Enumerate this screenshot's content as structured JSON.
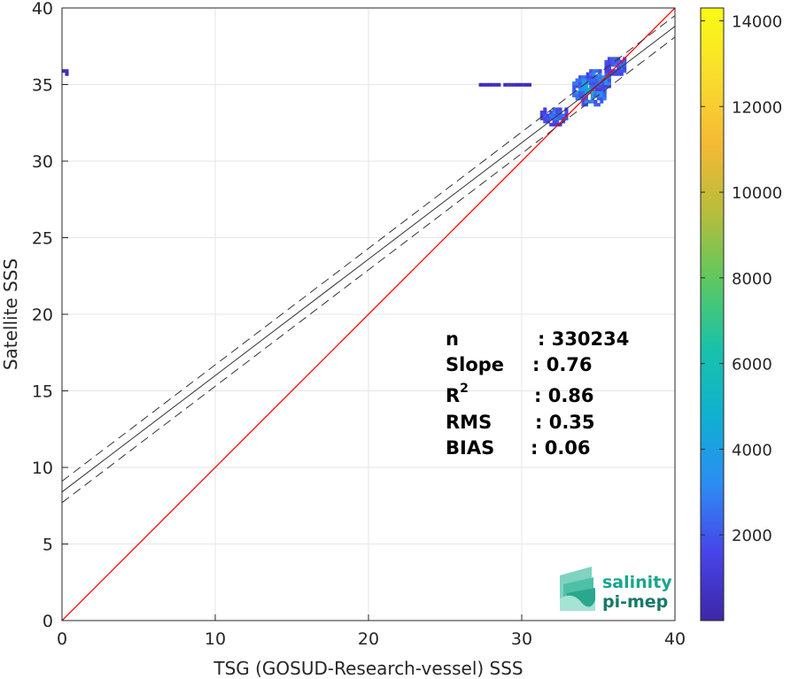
{
  "chart_data": {
    "type": "heatmap",
    "xlabel": "TSG (GOSUD-Research-vessel) SSS",
    "ylabel": "Satellite SSS",
    "xlim": [
      0,
      40
    ],
    "ylim": [
      0,
      40
    ],
    "xticks": [
      0,
      10,
      20,
      30,
      40
    ],
    "yticks": [
      0,
      5,
      10,
      15,
      20,
      25,
      30,
      35,
      40
    ],
    "grid": true,
    "reference_line": {
      "slope": 1,
      "intercept": 0,
      "color": "#ff0000"
    },
    "fit_line": {
      "slope": 0.76,
      "intercept": 8.4,
      "color": "#333333"
    },
    "fit_envelope": [
      {
        "slope": 0.76,
        "intercept": 9.1
      },
      {
        "slope": 0.76,
        "intercept": 7.7
      }
    ],
    "density_clusters": [
      {
        "x": [
          31.2,
          33.0
        ],
        "y": [
          32.3,
          33.5
        ],
        "level": 0.2
      },
      {
        "x": [
          33.3,
          35.5
        ],
        "y": [
          33.6,
          35.6
        ],
        "level": 0.3
      },
      {
        "x": [
          34.2,
          35.8
        ],
        "y": [
          34.6,
          36.0
        ],
        "level": 0.25
      },
      {
        "x": [
          35.4,
          36.8
        ],
        "y": [
          35.6,
          36.8
        ],
        "level": 0.2
      },
      {
        "x": [
          25.0,
          32.5
        ],
        "y": [
          34.9,
          35.1
        ],
        "level": 0.08
      },
      {
        "x": [
          0.0,
          0.4
        ],
        "y": [
          35.6,
          35.9
        ],
        "level": 0.05
      }
    ],
    "colorbar": {
      "min": 0,
      "max": 14300,
      "ticks": [
        2000,
        4000,
        6000,
        8000,
        10000,
        12000,
        14000
      ],
      "colormap": [
        "#3e26a8",
        "#4744e8",
        "#2d8cf4",
        "#0fb0d0",
        "#19c2a9",
        "#5dc860",
        "#b7bd3c",
        "#f5b935",
        "#fadd2c",
        "#f9fb15"
      ]
    },
    "stats": [
      {
        "label": "n",
        "sep": ":",
        "value": "330234"
      },
      {
        "label": "Slope",
        "sep": ":",
        "value": "0.76"
      },
      {
        "label": "R2",
        "sep": ":",
        "value": "0.86"
      },
      {
        "label": "RMS",
        "sep": ":",
        "value": "0.35"
      },
      {
        "label": "BIAS",
        "sep": ":",
        "value": "0.06"
      }
    ]
  },
  "logo": {
    "line1": "salinity",
    "line2": "pi-mep",
    "color": "#1aa58c"
  }
}
